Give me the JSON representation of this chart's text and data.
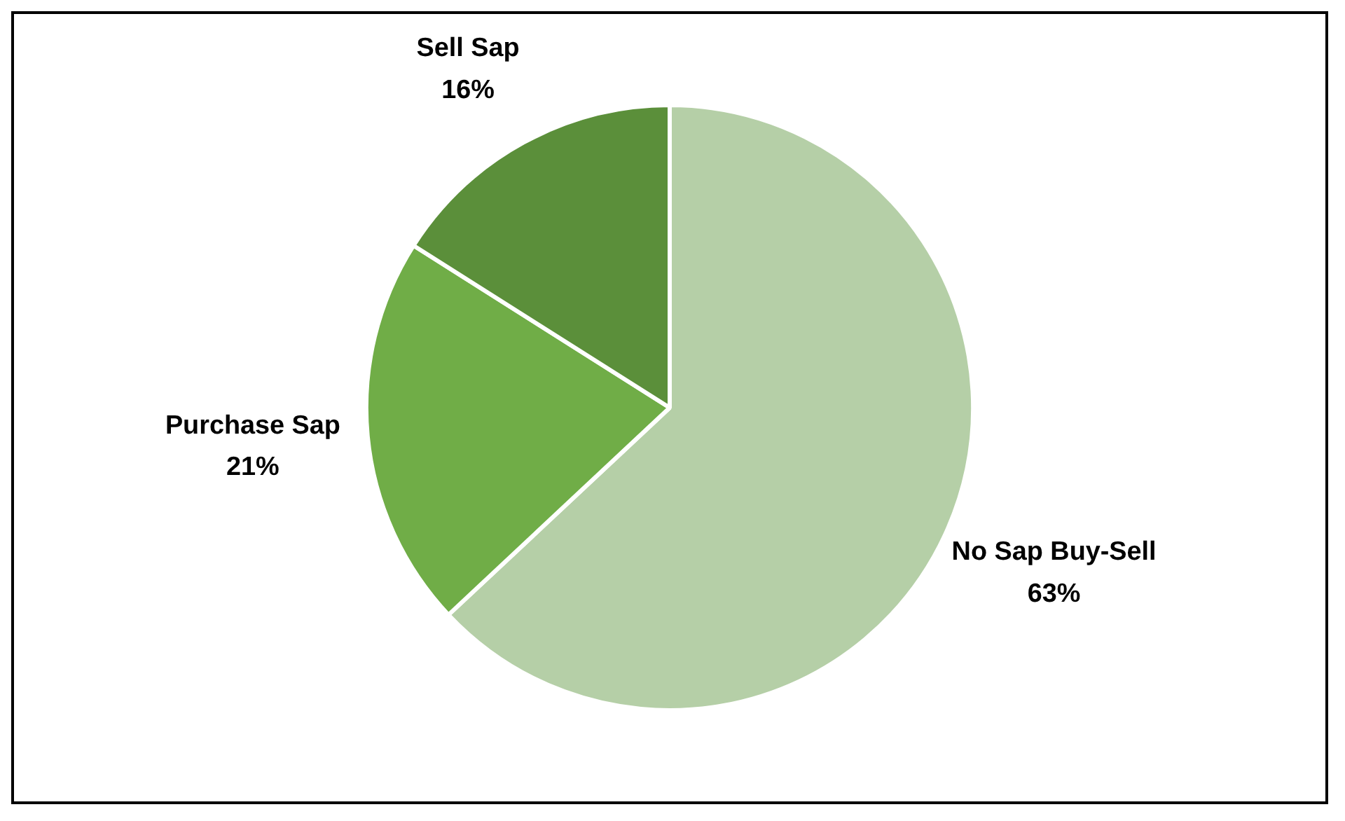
{
  "chart_data": {
    "type": "pie",
    "categories": [
      "No Sap Buy-Sell",
      "Purchase Sap",
      "Sell Sap"
    ],
    "values": [
      63,
      21,
      16
    ],
    "value_labels": [
      "63%",
      "21%",
      "16%"
    ],
    "colors": [
      "#b5cfa7",
      "#70ad47",
      "#5b8f3a"
    ],
    "legend": false
  }
}
